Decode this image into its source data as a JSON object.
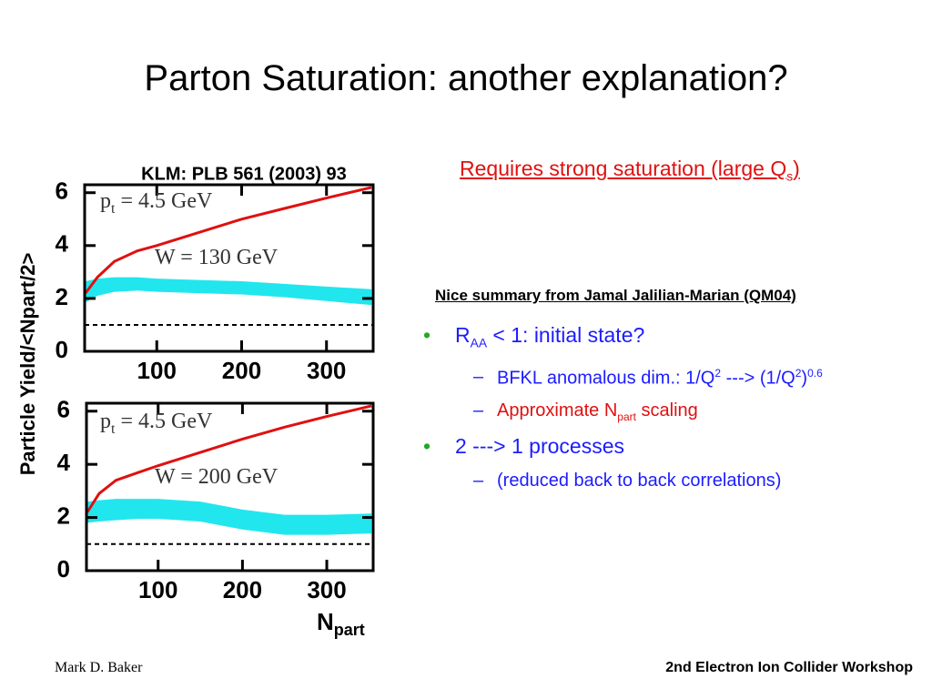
{
  "slide": {
    "title": "Parton Saturation: another explanation?",
    "footer_left": "Mark D. Baker",
    "footer_right": "2nd Electron Ion Collider Workshop"
  },
  "figure": {
    "caption": "KLM:  PLB 561 (2003) 93",
    "y_label": "Particle Yield/<Npart/2>",
    "x_label": {
      "main": "N",
      "sub": "part"
    }
  },
  "chart_data": [
    {
      "type": "line",
      "annotations": [
        {
          "main": "p",
          "sub": "t",
          "rest": " = 4.5 GeV"
        },
        "W = 130 GeV"
      ],
      "x": [
        16,
        30,
        50,
        77,
        100,
        150,
        200,
        250,
        300,
        353
      ],
      "series": [
        {
          "color": "#e01010",
          "values": [
            2.2,
            2.8,
            3.4,
            3.8,
            4.0,
            4.5,
            5.0,
            5.4,
            5.8,
            6.2
          ]
        }
      ],
      "band": {
        "color": "#22e6ee",
        "high": [
          2.65,
          2.75,
          2.8,
          2.8,
          2.75,
          2.7,
          2.65,
          2.55,
          2.45,
          2.35
        ],
        "low": [
          1.85,
          2.1,
          2.25,
          2.3,
          2.25,
          2.2,
          2.15,
          2.05,
          1.9,
          1.75
        ]
      },
      "reference_line": 1,
      "xlim": [
        15,
        355
      ],
      "ylim": [
        0,
        6.3
      ],
      "xticks": [
        100,
        200,
        300
      ],
      "yticks": [
        0,
        2,
        4,
        6
      ]
    },
    {
      "type": "line",
      "annotations": [
        {
          "main": "p",
          "sub": "t",
          "rest": " = 4.5 GeV"
        },
        "W = 200 GeV"
      ],
      "x": [
        16,
        30,
        50,
        77,
        100,
        150,
        200,
        250,
        300,
        353
      ],
      "series": [
        {
          "color": "#e01010",
          "values": [
            2.2,
            2.9,
            3.4,
            3.7,
            3.95,
            4.45,
            4.95,
            5.4,
            5.8,
            6.2
          ]
        }
      ],
      "band": {
        "color": "#22e6ee",
        "high": [
          2.6,
          2.65,
          2.7,
          2.7,
          2.7,
          2.6,
          2.3,
          2.1,
          2.1,
          2.15
        ],
        "low": [
          1.8,
          1.85,
          1.9,
          1.95,
          1.95,
          1.85,
          1.55,
          1.35,
          1.35,
          1.4
        ]
      },
      "reference_line": 1,
      "xlim": [
        15,
        355
      ],
      "ylim": [
        0,
        6.3
      ],
      "xticks": [
        100,
        200,
        300
      ],
      "yticks": [
        0,
        2,
        4,
        6
      ]
    }
  ],
  "notes": {
    "saturation": [
      {
        "text": "Requires strong saturation (large Q"
      },
      {
        "sub": "s"
      },
      {
        "text": ")"
      }
    ],
    "summary": "Nice summary from Jamal Jalilian-Marian (QM04)"
  },
  "bullets": [
    {
      "level": 1,
      "color": "#1c1cff",
      "runs": [
        {
          "text": "R"
        },
        {
          "sub": "AA"
        },
        {
          "text": " < 1: initial state?"
        }
      ]
    },
    {
      "level": 2,
      "color": "#1c1cff",
      "runs": [
        {
          "text": "BFKL anomalous dim.: 1/Q"
        },
        {
          "sup": "2"
        },
        {
          "text": " ---> (1/Q"
        },
        {
          "sup": "2"
        },
        {
          "text": ")"
        },
        {
          "sup": "0.6"
        }
      ]
    },
    {
      "level": 2,
      "color": "#e01010",
      "runs": [
        {
          "text": "Approximate N"
        },
        {
          "sub": "part"
        },
        {
          "text": " scaling"
        }
      ]
    },
    {
      "level": 1,
      "color": "#1c1cff",
      "runs": [
        {
          "text": "2 ---> 1 processes"
        }
      ]
    },
    {
      "level": 2,
      "color": "#1c1cff",
      "runs": [
        {
          "text": "(reduced back to back correlations)"
        }
      ]
    }
  ]
}
